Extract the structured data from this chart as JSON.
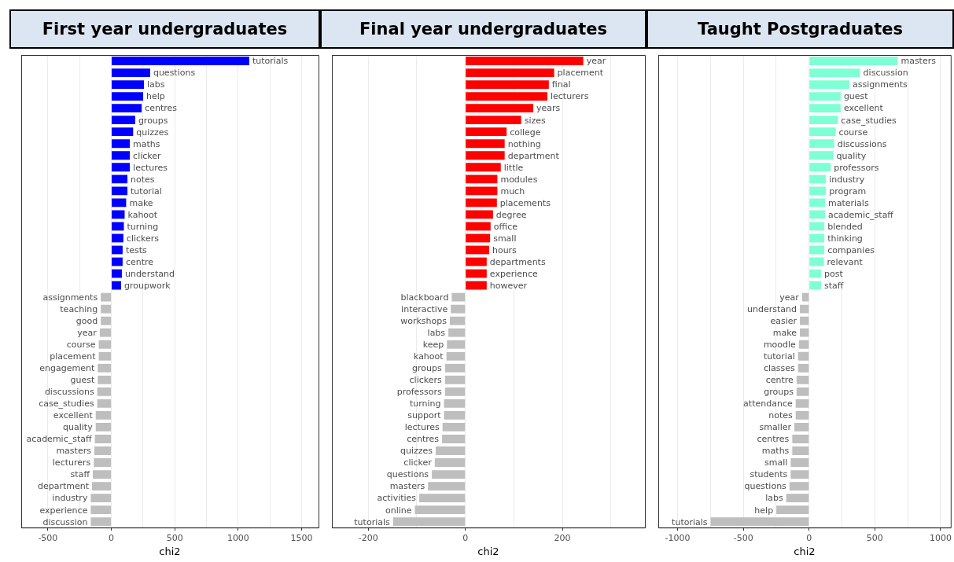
{
  "chart_data": [
    {
      "type": "bar",
      "orientation": "horizontal",
      "title": "First year undergraduates",
      "xlabel": "chi2",
      "categories": [
        "tutorials",
        "questions",
        "labs",
        "help",
        "centres",
        "groups",
        "quizzes",
        "maths",
        "clicker",
        "lectures",
        "notes",
        "tutorial",
        "make",
        "kahoot",
        "turning",
        "clickers",
        "tests",
        "centre",
        "understand",
        "groupwork",
        "assignments",
        "teaching",
        "good",
        "year",
        "course",
        "placement",
        "engagement",
        "guest",
        "discussions",
        "case_studies",
        "excellent",
        "quality",
        "academic_staff",
        "masters",
        "lecturers",
        "staff",
        "department",
        "industry",
        "experience",
        "discussion"
      ],
      "values": [
        1087,
        306,
        257,
        251,
        239,
        188,
        172,
        146,
        146,
        146,
        127,
        127,
        117,
        105,
        99,
        95,
        89,
        89,
        83,
        77,
        -83,
        -83,
        -83,
        -91,
        -99,
        -99,
        -107,
        -107,
        -111,
        -111,
        -123,
        -123,
        -130,
        -134,
        -138,
        -146,
        -152,
        -162,
        -162,
        -162
      ],
      "colors": [
        "#0000ff",
        "#0000ff",
        "#0000ff",
        "#0000ff",
        "#0000ff",
        "#0000ff",
        "#0000ff",
        "#0000ff",
        "#0000ff",
        "#0000ff",
        "#0000ff",
        "#0000ff",
        "#0000ff",
        "#0000ff",
        "#0000ff",
        "#0000ff",
        "#0000ff",
        "#0000ff",
        "#0000ff",
        "#0000ff",
        "#bebebe",
        "#bebebe",
        "#bebebe",
        "#bebebe",
        "#bebebe",
        "#bebebe",
        "#bebebe",
        "#bebebe",
        "#bebebe",
        "#bebebe",
        "#bebebe",
        "#bebebe",
        "#bebebe",
        "#bebebe",
        "#bebebe",
        "#bebebe",
        "#bebebe",
        "#bebebe",
        "#bebebe",
        "#bebebe"
      ],
      "xlim": [
        -710,
        1633
      ],
      "xticks": [
        -500,
        {
          "value": -250,
          "label": null
        },
        0,
        {
          "value": 250,
          "label": null
        },
        500,
        {
          "value": 750,
          "label": null
        },
        1000,
        {
          "value": 1250,
          "label": null
        },
        1500
      ],
      "grid": "x",
      "legend": false,
      "tick_labels": "x"
    },
    {
      "type": "bar",
      "orientation": "horizontal",
      "title": "Final year undergraduates",
      "xlabel": "chi2",
      "categories": [
        "year",
        "placement",
        "final",
        "lecturers",
        "years",
        "sizes",
        "college",
        "nothing",
        "department",
        "little",
        "modules",
        "much",
        "placements",
        "degree",
        "office",
        "small",
        "hours",
        "departments",
        "experience",
        "however",
        "blackboard",
        "interactive",
        "workshops",
        "labs",
        "keep",
        "kahoot",
        "groups",
        "clickers",
        "professors",
        "turning",
        "support",
        "lectures",
        "centres",
        "quizzes",
        "clicker",
        "questions",
        "masters",
        "activities",
        "online",
        "tutorials"
      ],
      "values": [
        243,
        183,
        172,
        169,
        140,
        115,
        85,
        81,
        81,
        73,
        66,
        66,
        65,
        57,
        52,
        51,
        49,
        44,
        44,
        44,
        -28,
        -30,
        -32,
        -35,
        -38,
        -39,
        -42,
        -42,
        -42,
        -44,
        -44,
        -47,
        -48,
        -61,
        -63,
        -69,
        -77,
        -95,
        -104,
        -149
      ],
      "colors": [
        "#ff0000",
        "#ff0000",
        "#ff0000",
        "#ff0000",
        "#ff0000",
        "#ff0000",
        "#ff0000",
        "#ff0000",
        "#ff0000",
        "#ff0000",
        "#ff0000",
        "#ff0000",
        "#ff0000",
        "#ff0000",
        "#ff0000",
        "#ff0000",
        "#ff0000",
        "#ff0000",
        "#ff0000",
        "#ff0000",
        "#bebebe",
        "#bebebe",
        "#bebebe",
        "#bebebe",
        "#bebebe",
        "#bebebe",
        "#bebebe",
        "#bebebe",
        "#bebebe",
        "#bebebe",
        "#bebebe",
        "#bebebe",
        "#bebebe",
        "#bebebe",
        "#bebebe",
        "#bebebe",
        "#bebebe",
        "#bebebe",
        "#bebebe",
        "#bebebe"
      ],
      "xlim": [
        -275,
        370
      ],
      "xticks": [
        -200,
        {
          "value": -100,
          "label": null
        },
        0,
        {
          "value": 100,
          "label": null
        },
        200,
        {
          "value": 300,
          "label": null
        }
      ],
      "grid": "x",
      "legend": false,
      "tick_labels": "x"
    },
    {
      "type": "bar",
      "orientation": "horizontal",
      "title": "Taught Postgraduates",
      "xlabel": "chi2",
      "categories": [
        "masters",
        "discussion",
        "assignments",
        "guest",
        "excellent",
        "case_studies",
        "course",
        "discussions",
        "quality",
        "professors",
        "industry",
        "program",
        "materials",
        "academic_staff",
        "blended",
        "thinking",
        "companies",
        "relevant",
        "post",
        "staff",
        "year",
        "understand",
        "easier",
        "make",
        "moodle",
        "tutorial",
        "classes",
        "centre",
        "groups",
        "attendance",
        "notes",
        "smaller",
        "centres",
        "maths",
        "small",
        "students",
        "questions",
        "labs",
        "help",
        "tutorials"
      ],
      "values": [
        674,
        388,
        307,
        240,
        240,
        219,
        202,
        191,
        184,
        165,
        128,
        128,
        121,
        121,
        116,
        116,
        116,
        112,
        91,
        91,
        -53,
        -70,
        -70,
        -70,
        -77,
        -84,
        -84,
        -95,
        -95,
        -102,
        -102,
        -112,
        -128,
        -128,
        -140,
        -140,
        -149,
        -174,
        -249,
        -749
      ],
      "colors": [
        "#7fffd4",
        "#7fffd4",
        "#7fffd4",
        "#7fffd4",
        "#7fffd4",
        "#7fffd4",
        "#7fffd4",
        "#7fffd4",
        "#7fffd4",
        "#7fffd4",
        "#7fffd4",
        "#7fffd4",
        "#7fffd4",
        "#7fffd4",
        "#7fffd4",
        "#7fffd4",
        "#7fffd4",
        "#7fffd4",
        "#7fffd4",
        "#7fffd4",
        "#bebebe",
        "#bebebe",
        "#bebebe",
        "#bebebe",
        "#bebebe",
        "#bebebe",
        "#bebebe",
        "#bebebe",
        "#bebebe",
        "#bebebe",
        "#bebebe",
        "#bebebe",
        "#bebebe",
        "#bebebe",
        "#bebebe",
        "#bebebe",
        "#bebebe",
        "#bebebe",
        "#bebebe",
        "#bebebe"
      ],
      "xlim": [
        -1147,
        1077
      ],
      "xticks": [
        -1000,
        {
          "value": -750,
          "label": null
        },
        -500,
        {
          "value": -250,
          "label": null
        },
        0,
        {
          "value": 250,
          "label": null
        },
        500,
        {
          "value": 750,
          "label": null
        },
        1000
      ],
      "grid": "x",
      "legend": false,
      "tick_labels": "x"
    }
  ]
}
